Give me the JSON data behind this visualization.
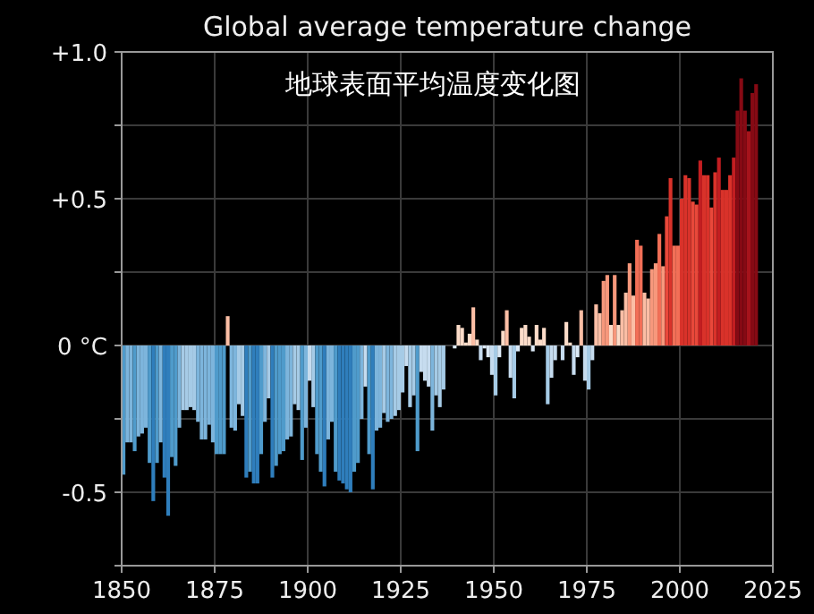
{
  "chart_data": {
    "type": "bar",
    "title": "Global average temperature change",
    "subtitle": "地球表面平均温度变化图",
    "xlim": [
      1850,
      2025
    ],
    "xticks": [
      1850,
      1875,
      1900,
      1925,
      1950,
      1975,
      2000,
      2025
    ],
    "ylim": [
      -0.75,
      1.0
    ],
    "yticks": [
      {
        "value": 1.0,
        "label": "+1.0"
      },
      {
        "value": 0.75,
        "label": null
      },
      {
        "value": 0.5,
        "label": "+0.5"
      },
      {
        "value": 0.25,
        "label": null
      },
      {
        "value": 0,
        "label": "0 °C"
      },
      {
        "value": -0.25,
        "label": null
      },
      {
        "value": -0.5,
        "label": "-0.5"
      },
      {
        "value": -0.75,
        "label": null
      }
    ],
    "grid": true,
    "x": [
      1850,
      1851,
      1852,
      1853,
      1854,
      1855,
      1856,
      1857,
      1858,
      1859,
      1860,
      1861,
      1862,
      1863,
      1864,
      1865,
      1866,
      1867,
      1868,
      1869,
      1870,
      1871,
      1872,
      1873,
      1874,
      1875,
      1876,
      1877,
      1878,
      1879,
      1880,
      1881,
      1882,
      1883,
      1884,
      1885,
      1886,
      1887,
      1888,
      1889,
      1890,
      1891,
      1892,
      1893,
      1894,
      1895,
      1896,
      1897,
      1898,
      1899,
      1900,
      1901,
      1902,
      1903,
      1904,
      1905,
      1906,
      1907,
      1908,
      1909,
      1910,
      1911,
      1912,
      1913,
      1914,
      1915,
      1916,
      1917,
      1918,
      1919,
      1920,
      1921,
      1922,
      1923,
      1924,
      1925,
      1926,
      1927,
      1928,
      1929,
      1930,
      1931,
      1932,
      1933,
      1934,
      1935,
      1936,
      1937,
      1938,
      1939,
      1940,
      1941,
      1942,
      1943,
      1944,
      1945,
      1946,
      1947,
      1948,
      1949,
      1950,
      1951,
      1952,
      1953,
      1954,
      1955,
      1956,
      1957,
      1958,
      1959,
      1960,
      1961,
      1962,
      1963,
      1964,
      1965,
      1966,
      1967,
      1968,
      1969,
      1970,
      1971,
      1972,
      1973,
      1974,
      1975,
      1976,
      1977,
      1978,
      1979,
      1980,
      1981,
      1982,
      1983,
      1984,
      1985,
      1986,
      1987,
      1988,
      1989,
      1990,
      1991,
      1992,
      1993,
      1994,
      1995,
      1996,
      1997,
      1998,
      1999,
      2000,
      2001,
      2002,
      2003,
      2004,
      2005,
      2006,
      2007,
      2008,
      2009,
      2010,
      2011,
      2012,
      2013,
      2014,
      2015,
      2016,
      2017,
      2018,
      2019,
      2020
    ],
    "values": [
      -0.44,
      -0.33,
      -0.33,
      -0.36,
      -0.31,
      -0.3,
      -0.28,
      -0.4,
      -0.53,
      -0.4,
      -0.33,
      -0.45,
      -0.58,
      -0.38,
      -0.41,
      -0.28,
      -0.22,
      -0.22,
      -0.21,
      -0.22,
      -0.26,
      -0.32,
      -0.32,
      -0.27,
      -0.33,
      -0.37,
      -0.37,
      -0.37,
      0.1,
      -0.28,
      -0.29,
      -0.2,
      -0.24,
      -0.45,
      -0.43,
      -0.47,
      -0.47,
      -0.37,
      -0.26,
      -0.18,
      -0.45,
      -0.41,
      -0.37,
      -0.36,
      -0.32,
      -0.31,
      -0.2,
      -0.22,
      -0.39,
      -0.28,
      -0.12,
      -0.21,
      -0.37,
      -0.43,
      -0.48,
      -0.32,
      -0.26,
      -0.43,
      -0.46,
      -0.47,
      -0.49,
      -0.5,
      -0.43,
      -0.4,
      -0.25,
      -0.14,
      -0.37,
      -0.49,
      -0.29,
      -0.28,
      -0.23,
      -0.26,
      -0.25,
      -0.24,
      -0.22,
      -0.16,
      -0.07,
      -0.21,
      -0.17,
      -0.36,
      -0.09,
      -0.12,
      -0.14,
      -0.29,
      -0.17,
      -0.21,
      -0.15,
      0,
      0,
      -0.01,
      0.07,
      0.06,
      0.01,
      0.04,
      0.13,
      0.02,
      -0.05,
      -0.01,
      -0.04,
      -0.1,
      -0.17,
      -0.04,
      0.05,
      0.12,
      -0.11,
      -0.18,
      -0.02,
      0.06,
      0.07,
      0.03,
      -0.02,
      0.07,
      0.02,
      0.06,
      -0.2,
      -0.11,
      -0.05,
      0,
      -0.05,
      0.08,
      0.01,
      -0.1,
      -0.04,
      0.12,
      -0.12,
      -0.15,
      -0.05,
      0.14,
      0.11,
      0.22,
      0.24,
      0.07,
      0.24,
      0.07,
      0.12,
      0.18,
      0.28,
      0.17,
      0.36,
      0.34,
      0.18,
      0.16,
      0.26,
      0.28,
      0.38,
      0.27,
      0.44,
      0.57,
      0.34,
      0.34,
      0.5,
      0.58,
      0.57,
      0.49,
      0.48,
      0.63,
      0.58,
      0.58,
      0.47,
      0.59,
      0.64,
      0.53,
      0.53,
      0.58,
      0.64,
      0.8,
      0.91,
      0.8,
      0.73,
      0.86,
      0.89
    ],
    "colors": [
      "#4f9bcb",
      "#7db5dc",
      "#7db5dc",
      "#4f9bcb",
      "#7db5dc",
      "#7db5dc",
      "#7db5dc",
      "#4f9bcb",
      "#2f7ebc",
      "#4f9bcb",
      "#7db5dc",
      "#2f7ebc",
      "#2f7ebc",
      "#4f9bcb",
      "#4f9bcb",
      "#7db5dc",
      "#a6cbe6",
      "#a6cbe6",
      "#a6cbe6",
      "#a6cbe6",
      "#7db5dc",
      "#7db5dc",
      "#7db5dc",
      "#7db5dc",
      "#7db5dc",
      "#4f9bcb",
      "#4f9bcb",
      "#4f9bcb",
      "#fbbea5",
      "#7db5dc",
      "#7db5dc",
      "#a6cbe6",
      "#a6cbe6",
      "#2f7ebc",
      "#4f9bcb",
      "#2f7ebc",
      "#2f7ebc",
      "#4f9bcb",
      "#7db5dc",
      "#a6cbe6",
      "#2f7ebc",
      "#4f9bcb",
      "#4f9bcb",
      "#4f9bcb",
      "#7db5dc",
      "#7db5dc",
      "#a6cbe6",
      "#a6cbe6",
      "#4f9bcb",
      "#7db5dc",
      "#c6dcef",
      "#a6cbe6",
      "#4f9bcb",
      "#4f9bcb",
      "#2f7ebc",
      "#7db5dc",
      "#7db5dc",
      "#4f9bcb",
      "#2f7ebc",
      "#2f7ebc",
      "#2f7ebc",
      "#2f7ebc",
      "#4f9bcb",
      "#4f9bcb",
      "#7db5dc",
      "#c6dcef",
      "#4f9bcb",
      "#2f7ebc",
      "#7db5dc",
      "#7db5dc",
      "#a6cbe6",
      "#7db5dc",
      "#7db5dc",
      "#a6cbe6",
      "#a6cbe6",
      "#a6cbe6",
      "#c6dcef",
      "#a6cbe6",
      "#a6cbe6",
      "#4f9bcb",
      "#c6dcef",
      "#c6dcef",
      "#c6dcef",
      "#7db5dc",
      "#a6cbe6",
      "#a6cbe6",
      "#a6cbe6",
      "#fcdcc9",
      "#fcdcc9",
      "#dbe9f6",
      "#fcdcc9",
      "#fcdcc9",
      "#fcdcc9",
      "#fcdcc9",
      "#fbbea5",
      "#fcdcc9",
      "#c6dcef",
      "#dbe9f6",
      "#dbe9f6",
      "#c6dcef",
      "#a6cbe6",
      "#dbe9f6",
      "#fcdcc9",
      "#fbbea5",
      "#c6dcef",
      "#a6cbe6",
      "#dbe9f6",
      "#fcdcc9",
      "#fcdcc9",
      "#fcdcc9",
      "#dbe9f6",
      "#fcdcc9",
      "#fcdcc9",
      "#fcdcc9",
      "#a6cbe6",
      "#c6dcef",
      "#c6dcef",
      "#fcdcc9",
      "#c6dcef",
      "#fcdcc9",
      "#fcdcc9",
      "#c6dcef",
      "#dbe9f6",
      "#fbbea5",
      "#c6dcef",
      "#a6cbe6",
      "#c6dcef",
      "#fbbea5",
      "#fbbea5",
      "#f7987c",
      "#f7987c",
      "#fcdcc9",
      "#f7987c",
      "#fcdcc9",
      "#fbbea5",
      "#fbbea5",
      "#f7987c",
      "#fbbea5",
      "#f26f57",
      "#f26f57",
      "#fbbea5",
      "#fbbea5",
      "#f7987c",
      "#f7987c",
      "#f26f57",
      "#f7987c",
      "#e9483a",
      "#d9322a",
      "#f26f57",
      "#f26f57",
      "#d9322a",
      "#d9322a",
      "#d9322a",
      "#e9483a",
      "#e9483a",
      "#c21e21",
      "#d9322a",
      "#d9322a",
      "#e9483a",
      "#d9322a",
      "#c21e21",
      "#d9322a",
      "#d9322a",
      "#d9322a",
      "#c21e21",
      "#860a14",
      "#860a14",
      "#860a14",
      "#a6131b",
      "#860a14",
      "#860a14"
    ]
  }
}
